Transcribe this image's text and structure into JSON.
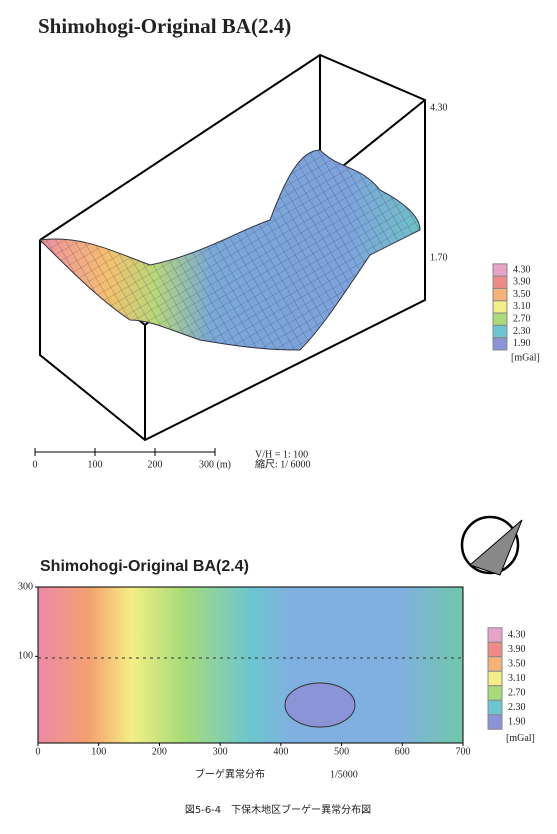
{
  "chart_data": [
    {
      "type": "surface3d",
      "title": "Shimohogi-Original BA(2.4)",
      "zticks": [
        {
          "value": 4.3,
          "label": "4.30"
        },
        {
          "value": 1.7,
          "label": "1.70"
        }
      ],
      "legend_levels": [
        {
          "value": 4.3,
          "label": "4.30"
        },
        {
          "value": 3.9,
          "label": "3.90"
        },
        {
          "value": 3.5,
          "label": "3.50"
        },
        {
          "value": 3.1,
          "label": "3.10"
        },
        {
          "value": 2.7,
          "label": "2.70"
        },
        {
          "value": 2.3,
          "label": "2.30"
        },
        {
          "value": 1.9,
          "label": "1.90"
        }
      ],
      "legend_colors": [
        "#e9a3c6",
        "#ef8a86",
        "#f6b277",
        "#f3ee86",
        "#a9dc78",
        "#6cc6cf",
        "#8a94d6"
      ],
      "legend_unit": "[mGal]",
      "scale_ticks": [
        {
          "value": 0,
          "label": "0"
        },
        {
          "value": 100,
          "label": "100"
        },
        {
          "value": 200,
          "label": "200"
        },
        {
          "value": 300,
          "label": "300 (m)"
        }
      ],
      "scale_lim": [
        0,
        300
      ],
      "vh_ratio": "V/H = 1:     100",
      "scale_note": "縮尺: 1/  6000"
    },
    {
      "type": "contour",
      "title": "Shimohogi-Original BA(2.4)",
      "xlim": [
        0,
        700
      ],
      "xticks": [
        0,
        100,
        200,
        300,
        400,
        500,
        600,
        700
      ],
      "ylim": [
        -150,
        300
      ],
      "yticks": [
        100,
        300
      ],
      "legend_levels": [
        {
          "value": 4.3,
          "label": "4.30"
        },
        {
          "value": 3.9,
          "label": "3.90"
        },
        {
          "value": 3.5,
          "label": "3.50"
        },
        {
          "value": 3.1,
          "label": "3.10"
        },
        {
          "value": 2.7,
          "label": "2.70"
        },
        {
          "value": 2.3,
          "label": "2.30"
        },
        {
          "value": 1.9,
          "label": "1.90"
        }
      ],
      "legend_colors": [
        "#e9a3c6",
        "#ef8a86",
        "#f6b277",
        "#f3ee86",
        "#a9dc78",
        "#6cc6cf",
        "#8a94d6"
      ],
      "legend_unit": "[mGal]",
      "subcaption": "ブーゲ異常分布",
      "map_scale": "1/5000"
    }
  ],
  "caption": "図5-6-4　下保木地区ブーゲー異常分布図"
}
